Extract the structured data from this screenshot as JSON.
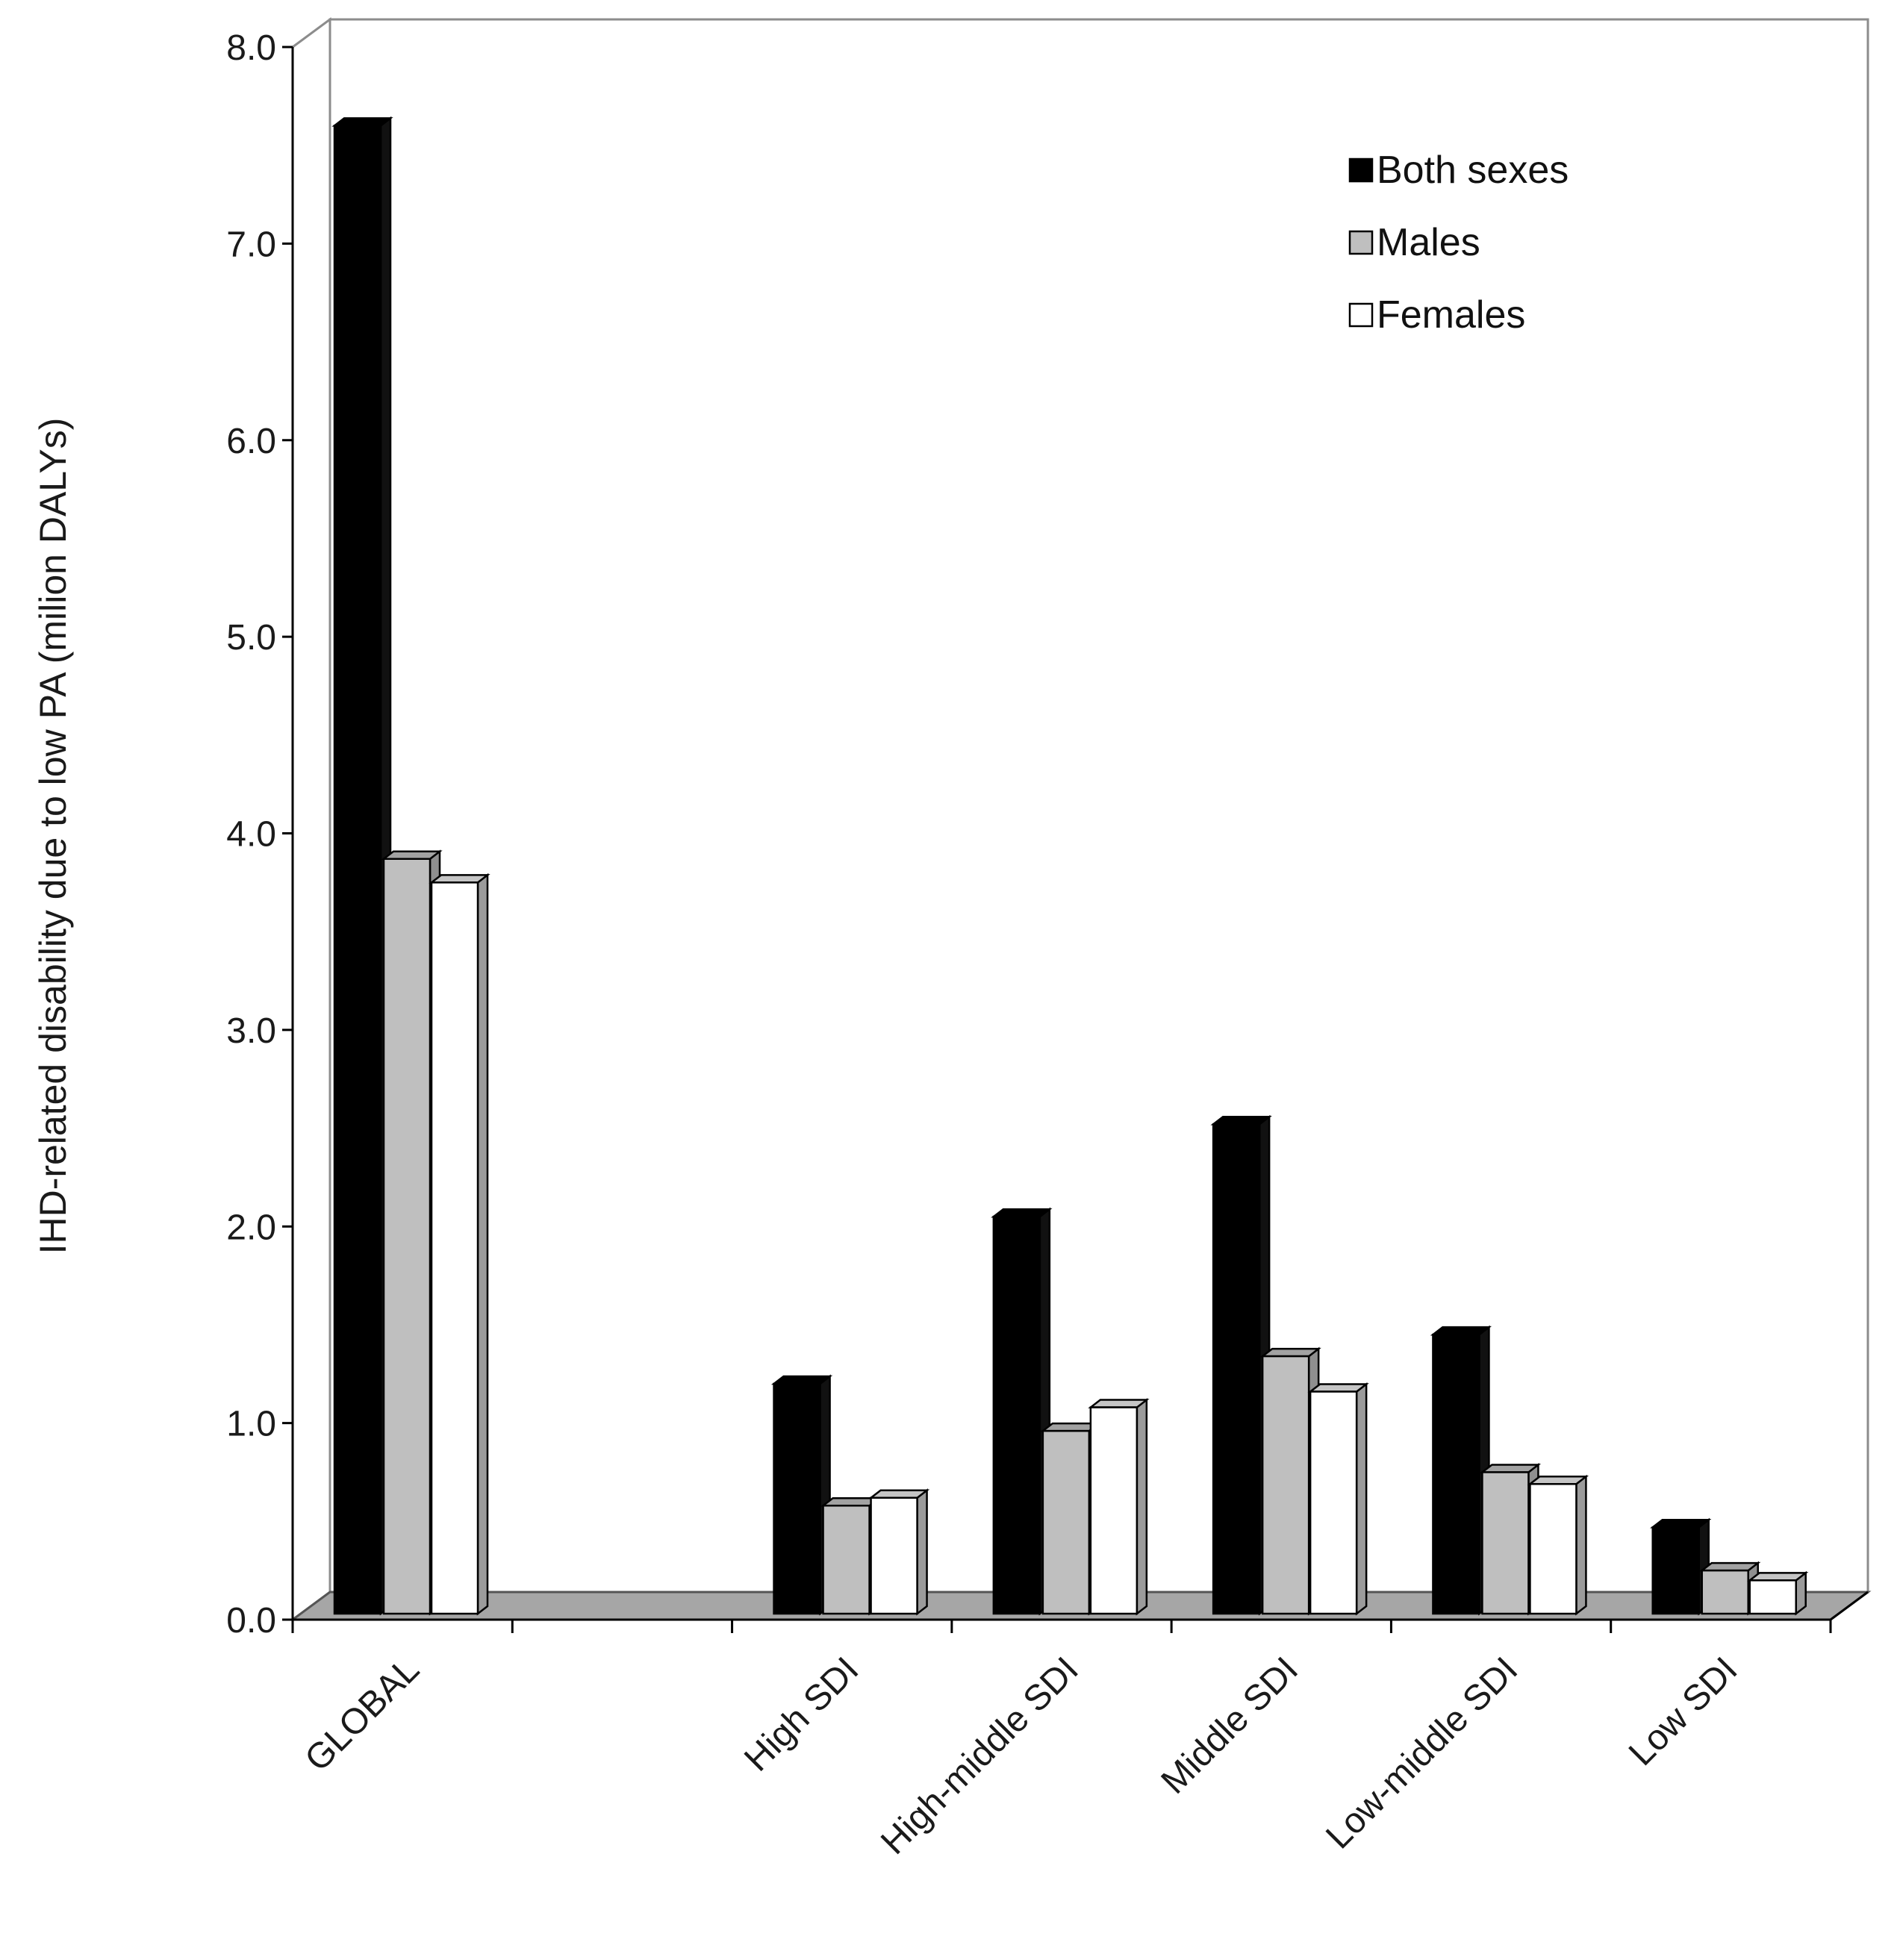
{
  "chart_data": {
    "type": "bar",
    "style": "3d-clustered-column",
    "title": "",
    "xlabel": "",
    "ylabel": "IHD-related  disability due to low PA (milion DALYs)",
    "ylim": [
      0,
      8
    ],
    "yticks": [
      "0.0",
      "1.0",
      "2.0",
      "3.0",
      "4.0",
      "5.0",
      "6.0",
      "7.0",
      "8.0"
    ],
    "grid": false,
    "legend_position": "top-right",
    "categories": [
      "GLOBAL",
      "",
      "High SDI",
      "High-middle SDI",
      "Middle SDI",
      "Low-middle SDI",
      "Low SDI"
    ],
    "series": [
      {
        "name": "Both sexes",
        "color": "#000000",
        "values": [
          7.6,
          null,
          1.2,
          2.05,
          2.52,
          1.45,
          0.47
        ]
      },
      {
        "name": "Males",
        "color": "#bfbfbf",
        "values": [
          3.87,
          null,
          0.58,
          0.96,
          1.34,
          0.75,
          0.25
        ]
      },
      {
        "name": "Females",
        "color": "#ffffff",
        "values": [
          3.75,
          null,
          0.62,
          1.08,
          1.16,
          0.69,
          0.2
        ]
      }
    ],
    "floor_color": "#a6a6a6"
  }
}
